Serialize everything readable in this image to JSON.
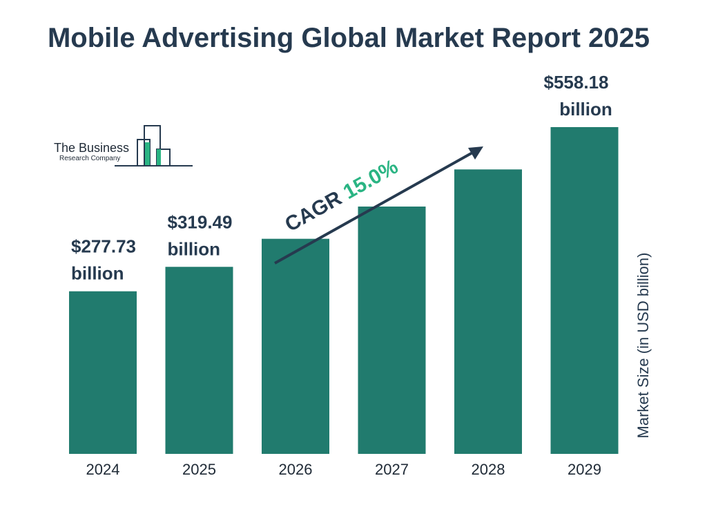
{
  "chart_data": {
    "type": "bar",
    "title": "Mobile Advertising Global Market Report 2025",
    "categories": [
      "2024",
      "2025",
      "2026",
      "2027",
      "2028",
      "2029"
    ],
    "values": [
      277.73,
      319.49,
      367.4,
      422.5,
      485.9,
      558.18
    ],
    "data_labels": [
      {
        "index": 0,
        "line1": "$277.73",
        "line2": "billion"
      },
      {
        "index": 1,
        "line1": "$319.49",
        "line2": "billion"
      },
      {
        "index": 5,
        "line1": "$558.18",
        "line2": "billion"
      }
    ],
    "ylabel": "Market Size (in USD billion)",
    "xlabel": "",
    "cagr_label": "CAGR",
    "cagr_value": "15.0%",
    "bar_color": "#217b6e",
    "cagr_color": "#2ab483",
    "text_color": "#263a4f"
  },
  "logo": {
    "line1": "The Business",
    "line2": "Research Company",
    "accent_color": "#2ab483"
  }
}
